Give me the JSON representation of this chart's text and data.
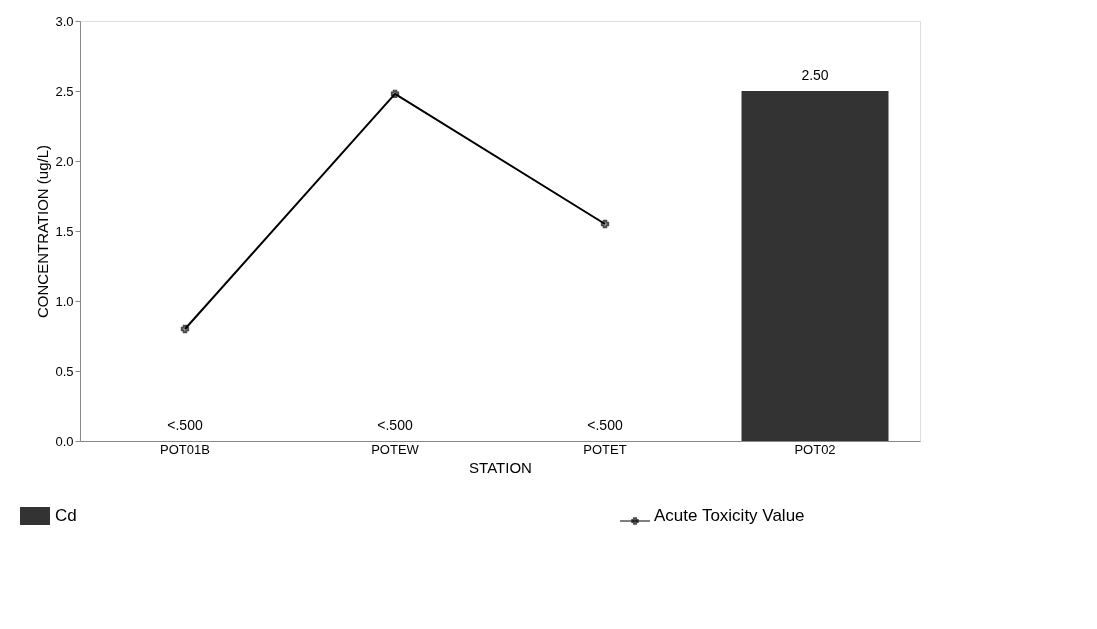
{
  "chart_data": {
    "type": "bar",
    "xlabel": "STATION",
    "ylabel": "CONCENTRATION (ug/L)",
    "categories": [
      "POT01B",
      "POTEW",
      "POTET",
      "POT02"
    ],
    "series": [
      {
        "name": "Cd",
        "color": "#333333",
        "values": [
          null,
          null,
          null,
          2.5
        ],
        "value_labels": [
          "<.500",
          "<.500",
          "<.500",
          "2.50"
        ]
      },
      {
        "name": "Acute Toxicity Value",
        "type": "line",
        "color": "#000000",
        "values": [
          0.8,
          2.48,
          1.55,
          null
        ]
      }
    ],
    "ylim": [
      0,
      3
    ],
    "yticks": [
      {
        "value": 0,
        "label": "0.0"
      },
      0.5,
      {
        "value": 1,
        "label": "1.0"
      },
      1.5,
      {
        "value": 2,
        "label": "2.0"
      },
      2.5,
      {
        "value": 3,
        "label": "3.0"
      }
    ],
    "grid": false,
    "legend": "bottom",
    "marker": "cross",
    "line_style": "solid"
  }
}
